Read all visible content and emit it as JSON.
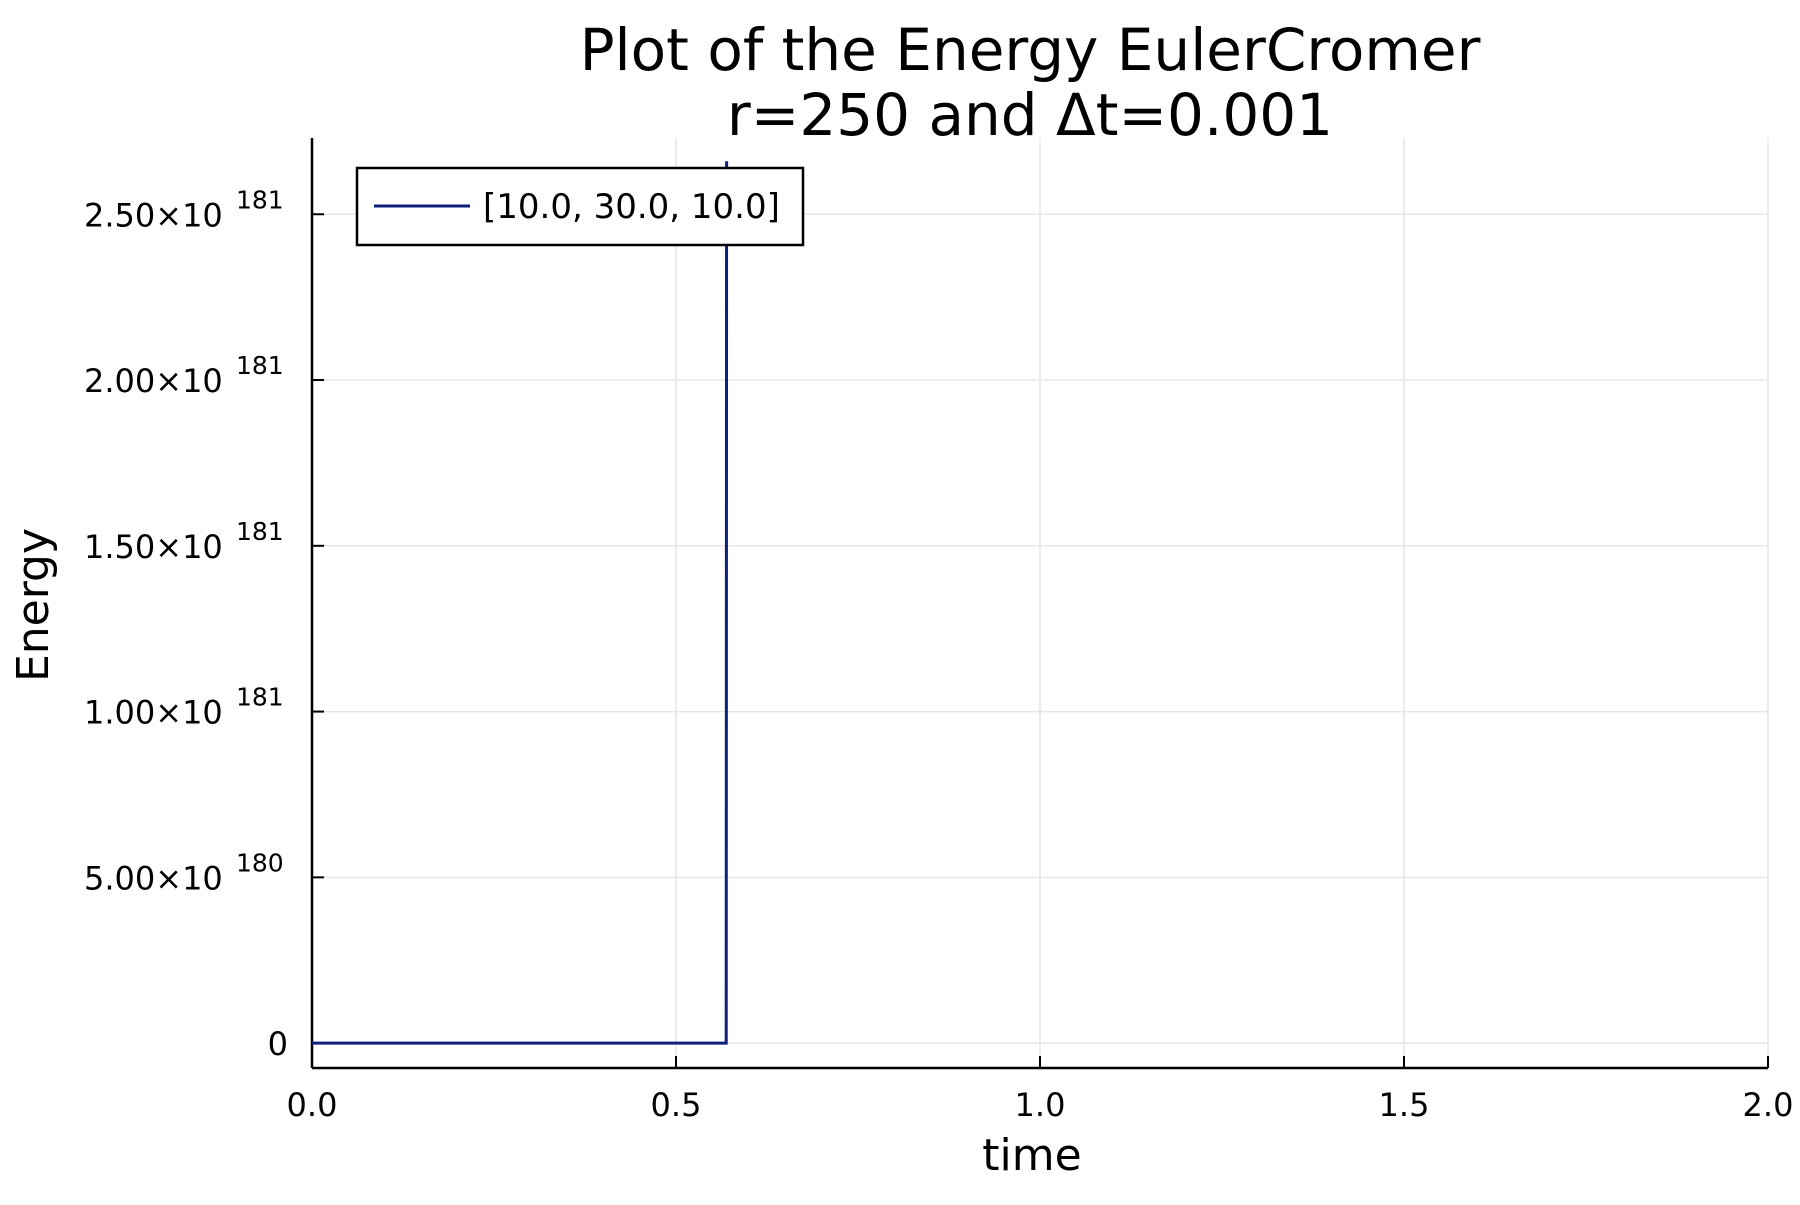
{
  "chart_data": {
    "type": "line",
    "title": [
      "Plot of the Energy EulerCromer",
      "r=250 and Δt=0.001"
    ],
    "xlabel": "time",
    "ylabel": "Energy",
    "xlim": [
      0.0,
      2.0
    ],
    "ylim": [
      -7.5e+179,
      2.73e+181
    ],
    "grid": true,
    "legend_position": "top-left",
    "series_color": "#0d1f78",
    "x_ticks": [
      {
        "value": 0.0,
        "label": "0.0"
      },
      {
        "value": 0.5,
        "label": "0.5"
      },
      {
        "value": 1.0,
        "label": "1.0"
      },
      {
        "value": 1.5,
        "label": "1.5"
      },
      {
        "value": 2.0,
        "label": "2.0"
      }
    ],
    "y_ticks": [
      {
        "value": 0,
        "mantissa": "0",
        "exponent": ""
      },
      {
        "value": 5e+180,
        "mantissa": "5.00×10",
        "exponent": "180"
      },
      {
        "value": 1e+181,
        "mantissa": "1.00×10",
        "exponent": "181"
      },
      {
        "value": 1.5e+181,
        "mantissa": "1.50×10",
        "exponent": "181"
      },
      {
        "value": 2e+181,
        "mantissa": "2.00×10",
        "exponent": "181"
      },
      {
        "value": 2.5e+181,
        "mantissa": "2.50×10",
        "exponent": "181"
      }
    ],
    "series": [
      {
        "name": "[10.0, 30.0, 10.0]",
        "x": [
          0.0,
          0.568,
          0.569,
          0.5695
        ],
        "y": [
          0,
          0,
          0,
          2.66e+181
        ]
      }
    ]
  }
}
